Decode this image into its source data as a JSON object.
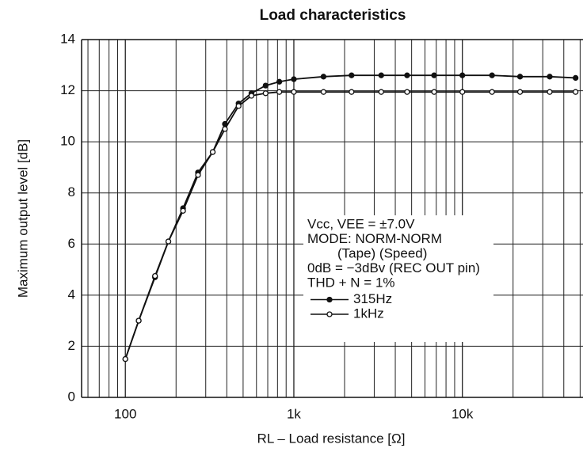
{
  "chart_data": {
    "type": "line",
    "title": "Load characteristics",
    "xlabel": "RL – Load resistance [Ω]",
    "ylabel": "Maximum output level [dB]",
    "x_scale": "log",
    "grid": true,
    "xlim": [
      55,
      52000
    ],
    "ylim": [
      0,
      14
    ],
    "xticks": [
      100,
      {
        "value": 1000,
        "label": "1k"
      },
      {
        "value": 10000,
        "label": "10k"
      }
    ],
    "yticks": [
      0,
      2,
      4,
      6,
      8,
      10,
      12,
      14
    ],
    "annotations": [
      "Vcc, VEE = ±7.0V",
      "MODE: NORM-NORM",
      "(Tape)   (Speed)",
      "0dB = −3dBv (REC OUT pin)",
      "THD + N = 1%"
    ],
    "series": [
      {
        "name": "315Hz",
        "color": "#111111",
        "marker": "filled",
        "x": [
          100,
          120,
          150,
          180,
          220,
          270,
          330,
          390,
          470,
          560,
          680,
          820,
          1000,
          1500,
          2200,
          3300,
          4700,
          6800,
          10000,
          15000,
          22000,
          33000,
          47000
        ],
        "values": [
          1.5,
          3.0,
          4.7,
          6.1,
          7.4,
          8.8,
          9.6,
          10.7,
          11.5,
          11.9,
          12.2,
          12.35,
          12.45,
          12.55,
          12.6,
          12.6,
          12.6,
          12.6,
          12.6,
          12.6,
          12.55,
          12.55,
          12.5
        ]
      },
      {
        "name": "1kHz",
        "color": "#111111",
        "marker": "open",
        "x": [
          100,
          120,
          150,
          180,
          220,
          270,
          330,
          390,
          470,
          560,
          680,
          820,
          1000,
          1500,
          2200,
          3300,
          4700,
          6800,
          10000,
          15000,
          22000,
          33000,
          47000
        ],
        "values": [
          1.5,
          3.0,
          4.75,
          6.1,
          7.3,
          8.7,
          9.6,
          10.5,
          11.4,
          11.8,
          11.9,
          11.95,
          11.95,
          11.95,
          11.95,
          11.95,
          11.95,
          11.95,
          11.95,
          11.95,
          11.95,
          11.95,
          11.95
        ]
      }
    ]
  }
}
